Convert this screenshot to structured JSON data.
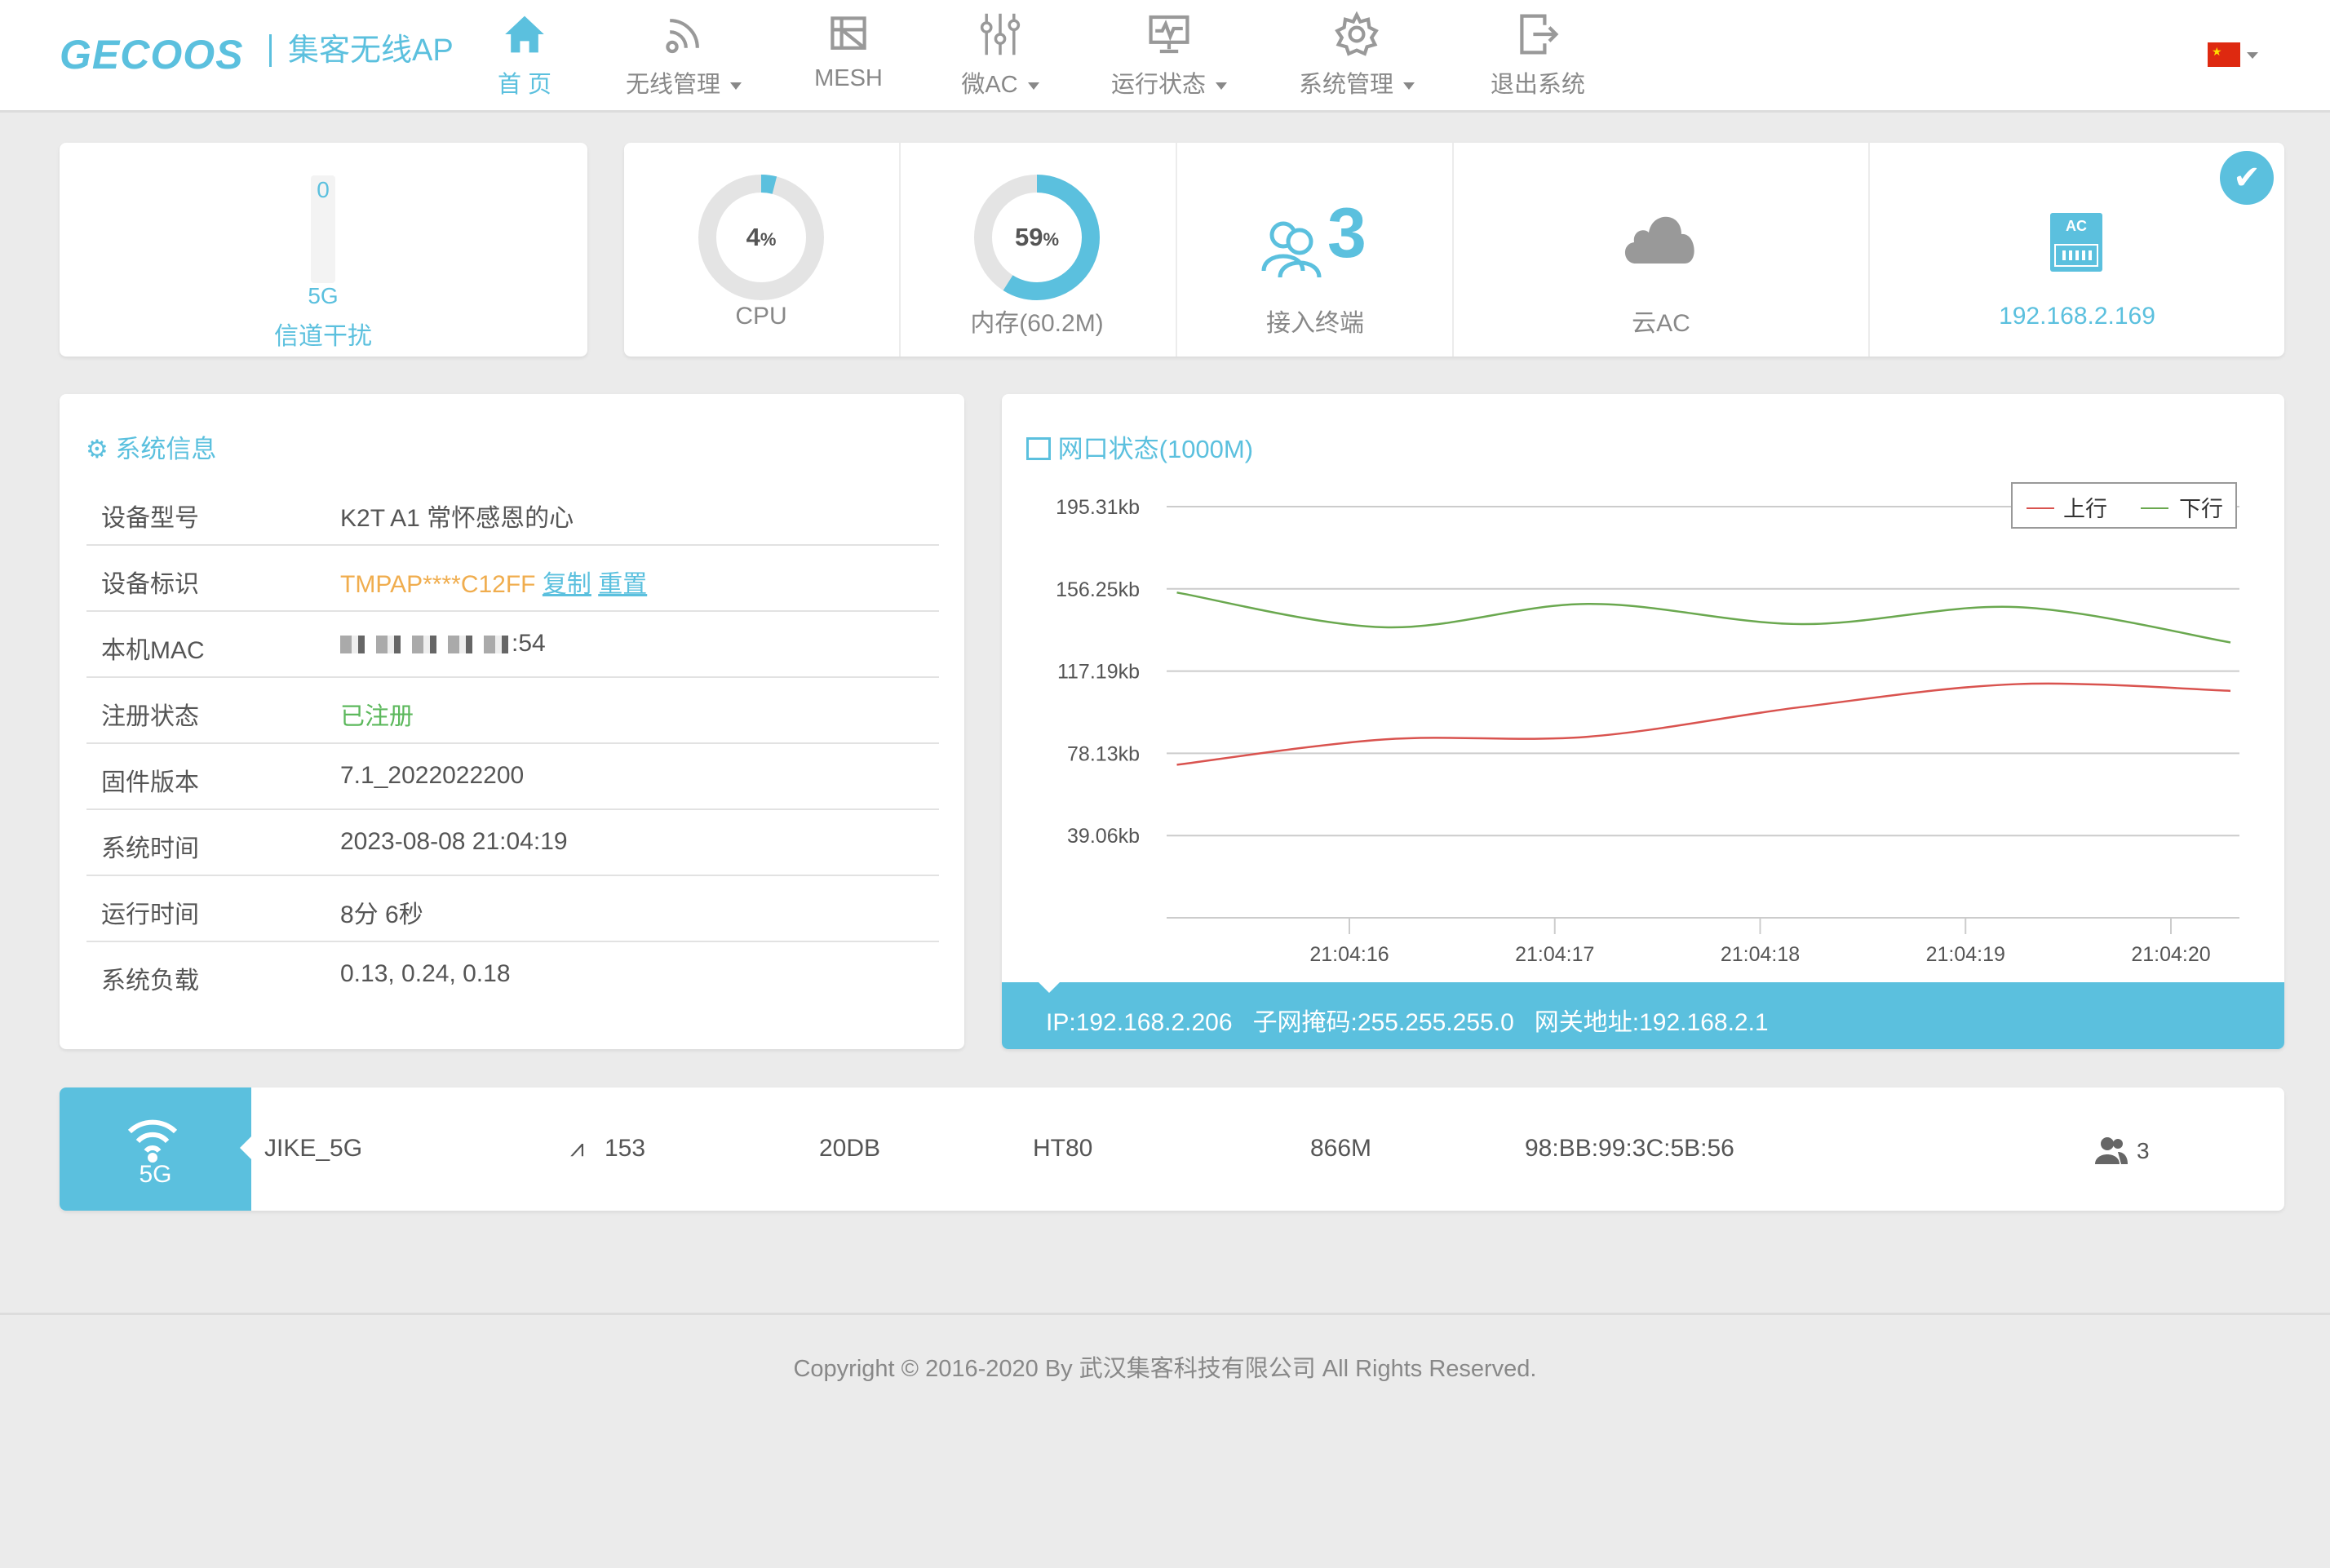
{
  "header": {
    "logo": "GECOOS",
    "logo_sub": "集客无线AP",
    "nav": [
      {
        "label": "首 页",
        "icon": "home-icon",
        "active": true,
        "dropdown": false
      },
      {
        "label": "无线管理",
        "icon": "wifi-icon",
        "active": false,
        "dropdown": true
      },
      {
        "label": "MESH",
        "icon": "mesh-icon",
        "active": false,
        "dropdown": false
      },
      {
        "label": "微AC",
        "icon": "sliders-icon",
        "active": false,
        "dropdown": true
      },
      {
        "label": "运行状态",
        "icon": "monitor-icon",
        "active": false,
        "dropdown": true
      },
      {
        "label": "系统管理",
        "icon": "gear-icon",
        "active": false,
        "dropdown": true
      },
      {
        "label": "退出系统",
        "icon": "logout-icon",
        "active": false,
        "dropdown": false
      }
    ],
    "language": "china-flag-icon"
  },
  "cards": {
    "interference": {
      "value": "0",
      "band": "5G",
      "label": "信道干扰"
    },
    "cpu": {
      "percent": 4,
      "value_text": "4",
      "unit": "%",
      "label": "CPU"
    },
    "memory": {
      "percent": 59,
      "value_text": "59",
      "unit": "%",
      "label": "内存(60.2M)"
    },
    "clients": {
      "count": "3",
      "label": "接入终端"
    },
    "cloud_ac": {
      "label": "云AC"
    },
    "ac": {
      "icon_text": "AC",
      "ip": "192.168.2.169",
      "status": "connected"
    }
  },
  "sysinfo": {
    "title": "系统信息",
    "rows": [
      {
        "label": "设备型号",
        "value": "K2T A1 常怀感恩的心"
      },
      {
        "label": "设备标识",
        "value": "TMPAP****C12FF",
        "copy": "复制",
        "reset": "重置"
      },
      {
        "label": "本机MAC",
        "value": ":54"
      },
      {
        "label": "注册状态",
        "value": "已注册"
      },
      {
        "label": "固件版本",
        "value": "7.1_2022022200"
      },
      {
        "label": "系统时间",
        "value": "2023-08-08 21:04:19"
      },
      {
        "label": "运行时间",
        "value": "8分 6秒"
      },
      {
        "label": "系统负载",
        "value": "0.13, 0.24, 0.18"
      }
    ]
  },
  "network": {
    "title": "网口状态(1000M)",
    "ip_label": "IP:",
    "ip": "192.168.2.206",
    "mask_label": "子网掩码:",
    "mask": "255.255.255.0",
    "gw_label": "网关地址:",
    "gw": "192.168.2.1"
  },
  "chart_data": {
    "type": "line",
    "y_ticks": [
      "39.06kb",
      "78.13kb",
      "117.19kb",
      "156.25kb",
      "195.31kb"
    ],
    "y_tick_values": [
      39.06,
      78.13,
      117.19,
      156.25,
      195.31
    ],
    "ylim": [
      0,
      195.31
    ],
    "x_ticks": [
      "21:04:16",
      "21:04:17",
      "21:04:18",
      "21:04:19",
      "21:04:20"
    ],
    "grid": true,
    "legend": "top-right",
    "series": [
      {
        "name": "上行",
        "color": "#d9534f",
        "x": [
          "21:04:15.16",
          "21:04:16.17",
          "21:04:17.16",
          "21:04:18.2",
          "21:04:19.25",
          "21:04:20.29"
        ],
        "values": [
          72.7,
          84.7,
          86.0,
          100.1,
          111.0,
          107.8
        ]
      },
      {
        "name": "下行",
        "color": "#6aa84f",
        "x": [
          "21:04:15.16",
          "21:04:16.17",
          "21:04:17.16",
          "21:04:18.2",
          "21:04:19.25",
          "21:04:20.29"
        ],
        "values": [
          154.5,
          138.0,
          149.1,
          139.5,
          147.6,
          130.8
        ]
      }
    ]
  },
  "radio": {
    "band": "5G",
    "ssid": "JIKE_5G",
    "channel": "153",
    "power": "20DB",
    "mode": "HT80",
    "rate": "866M",
    "bssid": "98:BB:99:3C:5B:56",
    "clients": "3"
  },
  "footer": {
    "copyright": "Copyright © 2016-2020 By 武汉集客科技有限公司 All Rights Reserved."
  },
  "colors": {
    "accent": "#5bc0de",
    "orange": "#f0ad4e",
    "green": "#5cb85c",
    "up": "#d9534f",
    "down": "#6aa84f"
  }
}
